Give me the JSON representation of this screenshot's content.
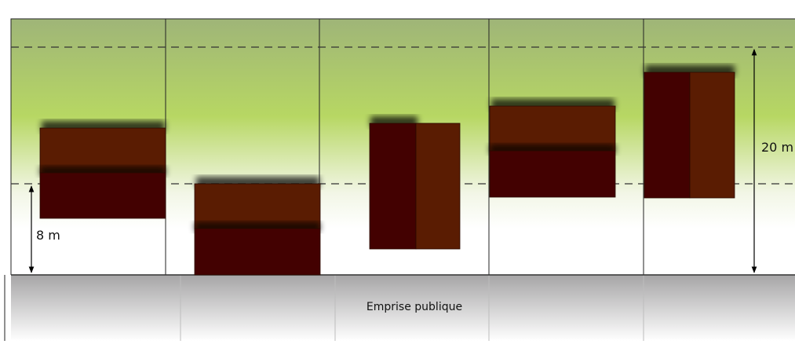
{
  "diagram": {
    "labels": {
      "min_height": "8 m",
      "max_height": "20 m",
      "public_domain": "Emprise publique"
    },
    "colors": {
      "band_top": "#9fb578",
      "band_mid": "#b7d763",
      "band_low": "#f2f6e6",
      "ground_top": "#a6a5a6",
      "ground_bottom": "#ffffff",
      "dark_brown": "#430101",
      "light_brown": "#5a1c02",
      "lot_lines": "#222222",
      "dash_lines": "#333333"
    }
  }
}
